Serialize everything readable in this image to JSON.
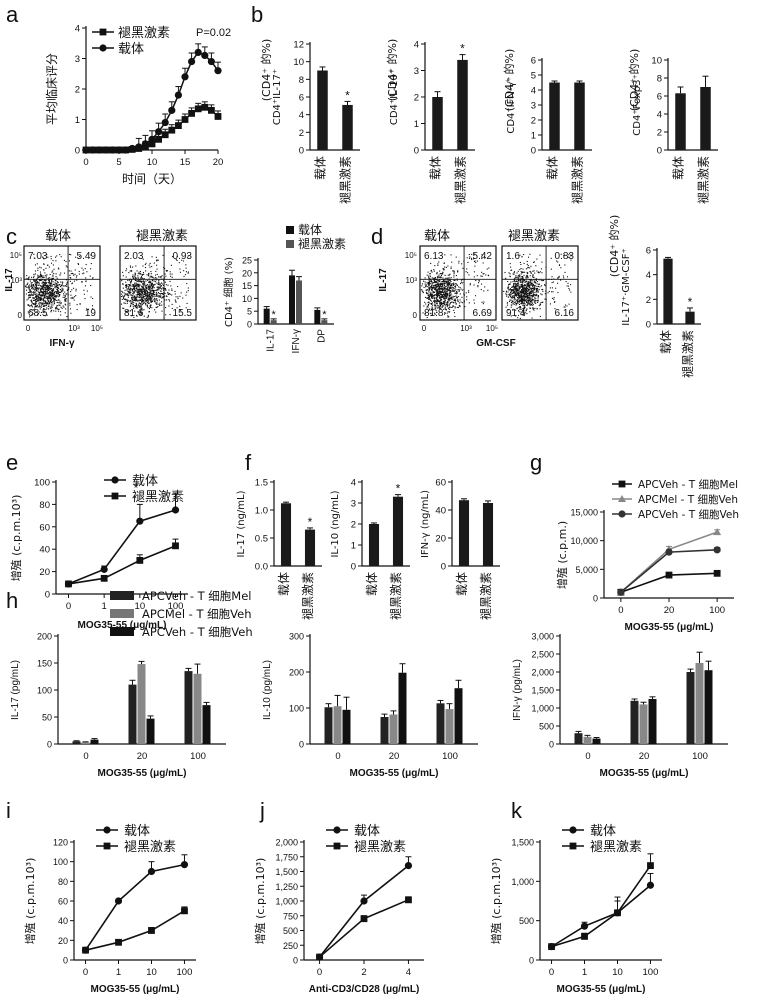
{
  "figure": {
    "labels": {
      "legend_vehicle": "载体",
      "legend_melatonin": "褪黑激素",
      "cat_vehicle": "载体",
      "cat_melatonin": "褪黑激素",
      "day_axis": "时间（天）",
      "clinical_score": "平均临床评分",
      "proliferation": "增殖 (c.p.m.10³)",
      "proliferation_cpm": "增殖 (c.p.m.)",
      "cd4_pct": "(CD4⁺ 的%)",
      "cd4_cells_pct": "CD4⁺ 细胞 (%)",
      "mog": "MOG35-55 (μg/mL)",
      "anti_cd3": "Anti-CD3/CD28 (μg/mL)",
      "il17": "IL-17",
      "ifng": "IFN-γ",
      "gmcsf": "GM-CSF",
      "p_value": "P=0.02",
      "apc_veh_tmel": "APCVeh - T 细胞Mel",
      "apc_mel_tveh": "APCMel - T 细胞Veh",
      "apc_veh_tveh": "APCVeh - T 细胞Veh"
    }
  },
  "chart_data": [
    {
      "panel": "a",
      "type": "line",
      "xlabel": "时间（天）",
      "ylabel": "平均临床评分",
      "xlim": [
        0,
        20
      ],
      "ylim": [
        0,
        4
      ],
      "xticks": [
        0,
        5,
        10,
        15,
        20
      ],
      "yticks": [
        0,
        1,
        2,
        3,
        4
      ],
      "annotation": "P=0.02",
      "series": [
        {
          "name": "褪黑激素",
          "marker": "square",
          "x": [
            0,
            1,
            2,
            3,
            4,
            5,
            6,
            7,
            8,
            9,
            10,
            11,
            12,
            13,
            14,
            15,
            16,
            17,
            18,
            19,
            20
          ],
          "y": [
            0,
            0,
            0,
            0,
            0,
            0,
            0,
            0.02,
            0.05,
            0.1,
            0.2,
            0.35,
            0.5,
            0.65,
            0.8,
            1.0,
            1.2,
            1.35,
            1.4,
            1.3,
            1.1
          ]
        },
        {
          "name": "载体",
          "marker": "circle",
          "x": [
            0,
            1,
            2,
            3,
            4,
            5,
            6,
            7,
            8,
            9,
            10,
            11,
            12,
            13,
            14,
            15,
            16,
            17,
            18,
            19,
            20
          ],
          "y": [
            0,
            0,
            0,
            0,
            0,
            0,
            0,
            0.05,
            0.1,
            0.2,
            0.35,
            0.6,
            0.9,
            1.3,
            1.8,
            2.4,
            2.9,
            3.2,
            3.1,
            2.9,
            2.6
          ]
        }
      ]
    },
    {
      "panel": "b1",
      "type": "bar",
      "categories": [
        "载体",
        "褪黑激素"
      ],
      "values": [
        9,
        5.1
      ],
      "errors": [
        0.4,
        0.4
      ],
      "ylim": [
        0,
        12
      ],
      "yticks": [
        0,
        2,
        4,
        6,
        8,
        10,
        12
      ],
      "ylabel": "CD4⁺IL-17⁺",
      "sig": [
        false,
        true
      ]
    },
    {
      "panel": "b2",
      "type": "bar",
      "categories": [
        "载体",
        "褪黑激素"
      ],
      "values": [
        2,
        3.4
      ],
      "errors": [
        0.2,
        0.2
      ],
      "ylim": [
        0,
        4
      ],
      "yticks": [
        0,
        1,
        2,
        3,
        4
      ],
      "ylabel": "CD4⁺IL-10⁺",
      "sig": [
        false,
        true
      ]
    },
    {
      "panel": "b3",
      "type": "bar",
      "categories": [
        "载体",
        "褪黑激素"
      ],
      "values": [
        4.5,
        4.5
      ],
      "errors": [
        0.1,
        0.1
      ],
      "ylim": [
        0,
        6
      ],
      "yticks": [
        0,
        1,
        2,
        3,
        4,
        5,
        6
      ],
      "ylabel": "CD4⁺IFN-γ⁺",
      "sig": [
        false,
        false
      ]
    },
    {
      "panel": "b4",
      "type": "bar",
      "categories": [
        "载体",
        "褪黑激素"
      ],
      "values": [
        6.3,
        7
      ],
      "errors": [
        0.7,
        1.2
      ],
      "ylim": [
        0,
        10
      ],
      "yticks": [
        0,
        2,
        4,
        6,
        8,
        10
      ],
      "ylabel": "CD4⁺Foxp3⁺",
      "sig": [
        false,
        false
      ]
    },
    {
      "panel": "c_flow",
      "type": "scatter",
      "title": [
        "载体",
        "褪黑激素"
      ],
      "xlabel": "IFN-γ",
      "ylabel": "IL-17",
      "quadrants": [
        [
          "7.03",
          "5.49",
          "68.5",
          "19"
        ],
        [
          "2.03",
          "0.93",
          "81.6",
          "15.5"
        ]
      ]
    },
    {
      "panel": "c_bar",
      "type": "bar",
      "categories": [
        "IL-17",
        "IFN-γ",
        "DP"
      ],
      "ylabel": "CD4⁺ 细胞 (%)",
      "ylim": [
        0,
        25
      ],
      "yticks": [
        0,
        5,
        10,
        15,
        20,
        25
      ],
      "series": [
        {
          "name": "载体",
          "values": [
            6,
            19,
            5.5
          ],
          "errors": [
            0.8,
            2,
            0.8
          ]
        },
        {
          "name": "褪黑激素",
          "values": [
            1.5,
            17,
            1.5
          ],
          "errors": [
            0.5,
            1.5,
            0.5
          ]
        }
      ]
    },
    {
      "panel": "d_flow",
      "type": "scatter",
      "title": [
        "载体",
        "褪黑激素"
      ],
      "xlabel": "GM-CSF",
      "ylabel": "IL-17",
      "quadrants": [
        [
          "6.13",
          "5.42",
          "81.8",
          "6.69"
        ],
        [
          "1.6",
          "0.83",
          "91.4",
          "6.16"
        ]
      ]
    },
    {
      "panel": "d_bar",
      "type": "bar",
      "categories": [
        "载体",
        "褪黑激素"
      ],
      "values": [
        5.3,
        1
      ],
      "errors": [
        0.1,
        0.3
      ],
      "ylim": [
        0,
        6
      ],
      "yticks": [
        0,
        2,
        4,
        6
      ],
      "ylabel": "IL-17⁺·GM-CSF⁺ (CD4⁺ 的%)",
      "sig": [
        false,
        true
      ]
    },
    {
      "panel": "e",
      "type": "line",
      "xlabel": "MOG35-55 (μg/mL)",
      "ylabel": "增殖 (c.p.m.10³)",
      "x": [
        "0",
        "1",
        "10",
        "100"
      ],
      "ylim": [
        0,
        100
      ],
      "yticks": [
        0,
        20,
        40,
        60,
        80,
        100
      ],
      "series": [
        {
          "name": "载体",
          "marker": "circle",
          "values": [
            9,
            22,
            65,
            75
          ],
          "errors": [
            1,
            3,
            15,
            15
          ]
        },
        {
          "name": "褪黑激素",
          "marker": "square",
          "values": [
            9,
            14,
            30,
            43
          ],
          "errors": [
            1,
            2,
            5,
            6
          ]
        }
      ]
    },
    {
      "panel": "f1",
      "type": "bar",
      "categories": [
        "载体",
        "褪黑激素"
      ],
      "values": [
        1.12,
        0.65
      ],
      "errors": [
        0.02,
        0.03
      ],
      "ylim": [
        0,
        1.5
      ],
      "yticks": [
        0,
        0.5,
        1.0,
        1.5
      ],
      "ylabel": "IL-17 (ng/mL)",
      "sig": [
        false,
        true
      ]
    },
    {
      "panel": "f2",
      "type": "bar",
      "categories": [
        "载体",
        "褪黑激素"
      ],
      "values": [
        2,
        3.3
      ],
      "errors": [
        0.05,
        0.1
      ],
      "ylim": [
        0,
        4
      ],
      "yticks": [
        0,
        1,
        2,
        3,
        4
      ],
      "ylabel": "IL-10 (ng/mL)",
      "sig": [
        false,
        true
      ]
    },
    {
      "panel": "f3",
      "type": "bar",
      "categories": [
        "载体",
        "褪黑激素"
      ],
      "values": [
        47,
        45
      ],
      "errors": [
        1,
        1.5
      ],
      "ylim": [
        0,
        60
      ],
      "yticks": [
        0,
        20,
        40,
        60
      ],
      "ylabel": "IFN-γ (ng/mL)",
      "sig": [
        false,
        false
      ]
    },
    {
      "panel": "g",
      "type": "line",
      "xlabel": "MOG35-55 (μg/mL)",
      "ylabel": "增殖 (c.p.m.)",
      "x": [
        "0",
        "20",
        "100"
      ],
      "ylim": [
        0,
        15000
      ],
      "yticks": [
        0,
        5000,
        10000,
        15000
      ],
      "series": [
        {
          "name": "APCVeh - T 细胞Mel",
          "marker": "square",
          "values": [
            1000,
            4000,
            4300
          ],
          "errors": [
            200,
            300,
            300
          ]
        },
        {
          "name": "APCMel - T 细胞Veh",
          "marker": "triangle",
          "values": [
            1000,
            8500,
            11500
          ],
          "errors": [
            200,
            500,
            400
          ]
        },
        {
          "name": "APCVeh - T 细胞Veh",
          "marker": "circle",
          "values": [
            1000,
            8000,
            8400
          ],
          "errors": [
            200,
            400,
            400
          ]
        }
      ]
    },
    {
      "panel": "h1",
      "type": "bar",
      "categories": [
        "0",
        "20",
        "100"
      ],
      "xlabel": "MOG35-55 (μg/mL)",
      "ylabel": "IL-17 (pg/mL)",
      "ylim": [
        0,
        200
      ],
      "yticks": [
        0,
        50,
        100,
        150,
        200
      ],
      "series": [
        {
          "name": "APCVeh - T 细胞Mel",
          "values": [
            5,
            110,
            135
          ],
          "errors": [
            1,
            8,
            5
          ]
        },
        {
          "name": "APCMel - T 细胞Veh",
          "values": [
            3,
            148,
            130
          ],
          "errors": [
            1,
            5,
            18
          ]
        },
        {
          "name": "APCVeh - T 细胞Veh",
          "values": [
            8,
            47,
            72
          ],
          "errors": [
            2,
            5,
            5
          ]
        }
      ]
    },
    {
      "panel": "h2",
      "type": "bar",
      "categories": [
        "0",
        "20",
        "100"
      ],
      "xlabel": "MOG35-55 (μg/mL)",
      "ylabel": "IL-10 (pg/mL)",
      "ylim": [
        0,
        300
      ],
      "yticks": [
        0,
        100,
        200,
        300
      ],
      "series": [
        {
          "name": "APCVeh - T 细胞Mel",
          "values": [
            102,
            75,
            113
          ],
          "errors": [
            10,
            8,
            8
          ]
        },
        {
          "name": "APCMel - T 细胞Veh",
          "values": [
            105,
            82,
            97
          ],
          "errors": [
            30,
            10,
            15
          ]
        },
        {
          "name": "APCVeh - T 细胞Veh",
          "values": [
            95,
            198,
            155
          ],
          "errors": [
            35,
            25,
            22
          ]
        }
      ]
    },
    {
      "panel": "h3",
      "type": "bar",
      "categories": [
        "0",
        "20",
        "100"
      ],
      "xlabel": "MOG35-55 (μg/mL)",
      "ylabel": "IFN-γ (pg/mL)",
      "ylim": [
        0,
        3000
      ],
      "yticks": [
        0,
        500,
        1000,
        1500,
        2000,
        2500,
        3000
      ],
      "series": [
        {
          "name": "APCVeh - T 细胞Mel",
          "values": [
            300,
            1200,
            2000
          ],
          "errors": [
            50,
            50,
            80
          ]
        },
        {
          "name": "APCMel - T 细胞Veh",
          "values": [
            200,
            1100,
            2250
          ],
          "errors": [
            40,
            60,
            300
          ]
        },
        {
          "name": "APCVeh - T 细胞Veh",
          "values": [
            150,
            1250,
            2050
          ],
          "errors": [
            30,
            60,
            250
          ]
        }
      ]
    },
    {
      "panel": "i",
      "type": "line",
      "xlabel": "MOG35-55 (μg/mL)",
      "ylabel": "增殖 (c.p.m.10³)",
      "x": [
        "0",
        "1",
        "10",
        "100"
      ],
      "ylim": [
        0,
        120
      ],
      "yticks": [
        0,
        20,
        40,
        60,
        80,
        100,
        120
      ],
      "series": [
        {
          "name": "载体",
          "marker": "circle",
          "values": [
            10,
            60,
            90,
            97
          ],
          "errors": [
            1,
            2,
            10,
            10
          ]
        },
        {
          "name": "褪黑激素",
          "marker": "square",
          "values": [
            10,
            18,
            30,
            50
          ],
          "errors": [
            1,
            2,
            3,
            4
          ]
        }
      ]
    },
    {
      "panel": "j",
      "type": "line",
      "xlabel": "Anti-CD3/CD28 (μg/mL)",
      "ylabel": "增殖 (c.p.m.10³)",
      "x": [
        "0",
        "2",
        "4"
      ],
      "ylim": [
        0,
        2000
      ],
      "yticks": [
        0,
        250,
        500,
        750,
        1000,
        1250,
        1500,
        1750,
        2000
      ],
      "series": [
        {
          "name": "载体",
          "marker": "circle",
          "values": [
            50,
            1000,
            1600
          ],
          "errors": [
            10,
            100,
            150
          ]
        },
        {
          "name": "褪黑激素",
          "marker": "square",
          "values": [
            50,
            700,
            1020
          ],
          "errors": [
            10,
            50,
            50
          ]
        }
      ]
    },
    {
      "panel": "k",
      "type": "line",
      "xlabel": "MOG35-55 (μg/mL)",
      "ylabel": "增殖 (c.p.m.10³)",
      "x": [
        "0",
        "1",
        "10",
        "100"
      ],
      "ylim": [
        0,
        1500
      ],
      "yticks": [
        0,
        500,
        1000,
        1500
      ],
      "series": [
        {
          "name": "载体",
          "marker": "circle",
          "values": [
            170,
            430,
            600,
            950
          ],
          "errors": [
            20,
            50,
            200,
            150
          ]
        },
        {
          "name": "褪黑激素",
          "marker": "square",
          "values": [
            170,
            300,
            600,
            1200
          ],
          "errors": [
            20,
            40,
            150,
            150
          ]
        }
      ]
    }
  ]
}
